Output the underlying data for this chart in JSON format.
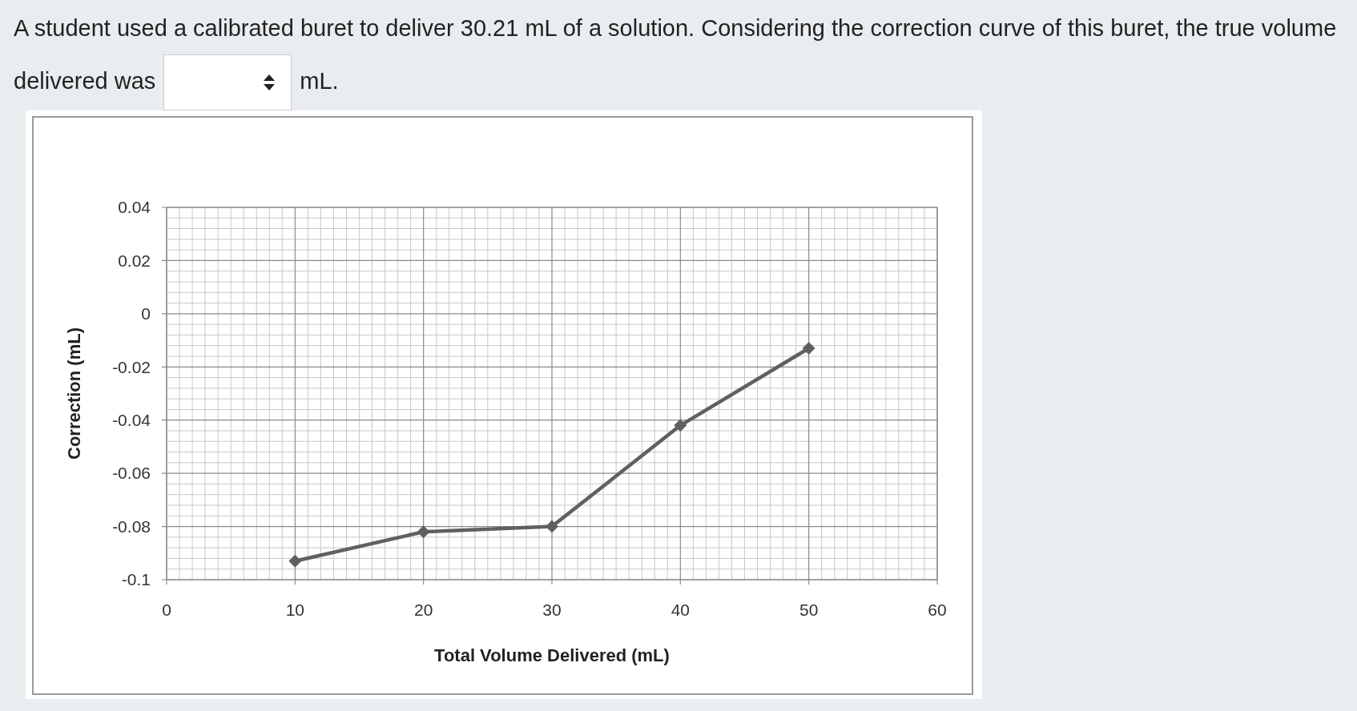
{
  "chart_data": {
    "type": "line",
    "title": "A student used a calibrated buret to deliver 30.21 mL of a solution. Considering the correction curve of this buret, the true volume delivered was",
    "annotations": [
      "mL."
    ],
    "xlabel": "Total Volume Delivered (mL)",
    "ylabel": "Correction (mL)",
    "x": [
      10,
      20,
      30,
      40,
      50
    ],
    "series": [
      {
        "color": "#606060",
        "values": [
          -0.093,
          -0.082,
          -0.08,
          -0.042,
          -0.013
        ]
      }
    ],
    "xlim": [
      0,
      60
    ],
    "xticks": [
      0,
      10,
      20,
      30,
      40,
      50,
      60
    ],
    "ylim": [
      -0.1,
      0.04
    ],
    "yticks": [
      -0.1,
      -0.08,
      -0.06,
      -0.04,
      -0.02,
      0,
      0.02,
      0.04
    ],
    "grid": true,
    "marker": "diamond",
    "line_style": "solid"
  }
}
